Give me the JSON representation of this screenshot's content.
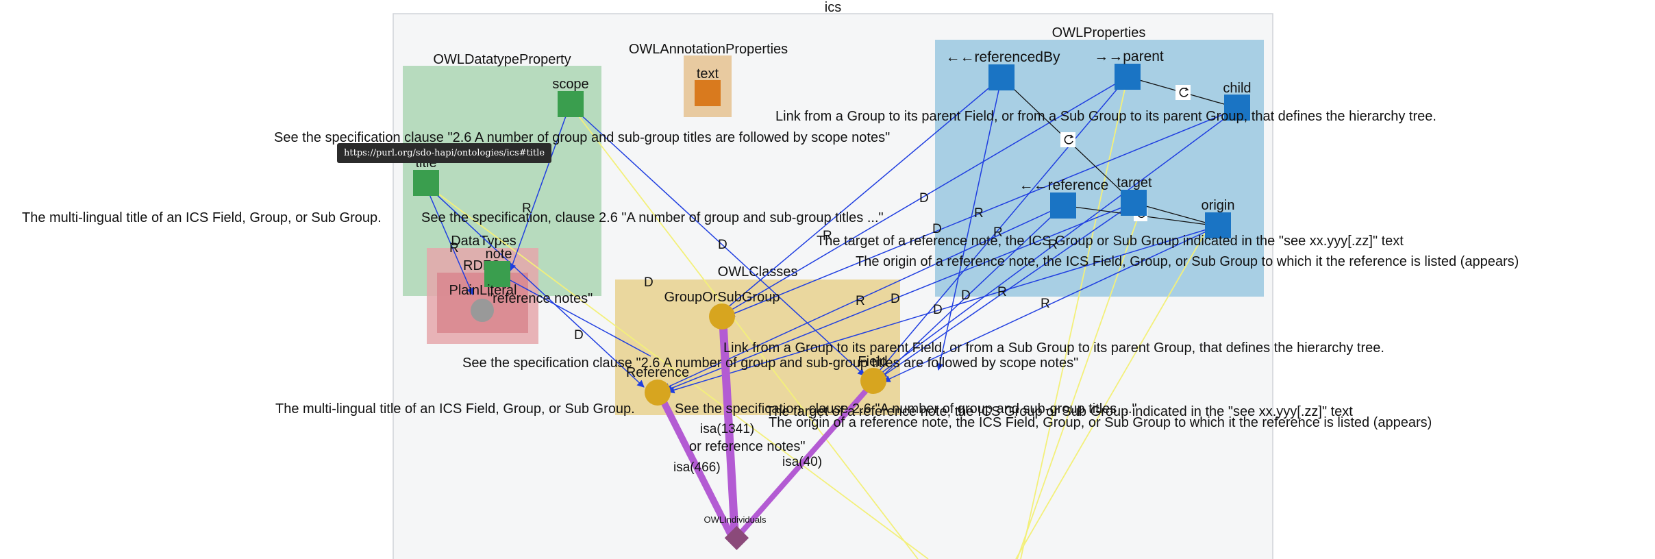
{
  "graph_title": "ics",
  "colors": {
    "frame_bg": "#f5f6f7",
    "frame_border": "#d0d4d8",
    "datatype_property": "#b7dbbe",
    "annotation_properties": "#e8caa0",
    "object_properties": "#a8cfe4",
    "owl_classes": "#ead79e",
    "datatypes_outer": "#e5a7ac",
    "datatypes_inner": "#d98890",
    "domain_range_edge": "#1f3ee0",
    "isa_edge": "#b35bd3",
    "annotation_edge": "#f3f07a",
    "class_node": "#d7a51f",
    "property_node_object": "#1a74c4",
    "property_node_datatype": "#3a9e4e",
    "property_node_annotation": "#d97a1e",
    "individual_node": "#8b4a7a",
    "literal_node": "#999999"
  },
  "groups": {
    "datatype_property": "OWLDatatypeProperty",
    "annotation_properties": "OWLAnnotationProperties",
    "object_properties": "OWLProperties",
    "classes": "OWLClasses",
    "datatypes": "DataTypes",
    "datatypes_inner": "RDFS"
  },
  "nodes": {
    "scope": "scope",
    "title": "title",
    "note": "note",
    "text": "text",
    "plain_literal": "PlainLiteral",
    "referenced_by": "←←referencedBy",
    "parent": "→→parent",
    "child": "child",
    "reference": "←←reference",
    "target": "target",
    "origin": "origin",
    "group_or_subgroup": "GroupOrSubGroup",
    "reference_class": "Reference",
    "field": "Field",
    "individuals": "OWLIndividuals"
  },
  "edge_labels": {
    "domain": "D",
    "range": "R",
    "isa_1341": "isa(1341)",
    "isa_466": "isa(466)",
    "isa_40": "isa(40)"
  },
  "annotations": {
    "scope_comment": "See the specification clause \"2.6 A number of group and sub-group titles are followed by scope notes\"",
    "title_comment": "The multi-lingual title of an ICS Field, Group, or Sub Group.",
    "note_comment": "See the specification, clause 2.6 \"A number of group and sub-group titles ...\"",
    "reference_notes": "\"reference notes\"",
    "parent_comment": "Link from a Group to its parent Field, or from a Sub Group to its parent Group, that defines the hierarchy tree.",
    "target_comment": "The target of a reference note, the ICS Group or Sub Group indicated in the \"see xx.yyy[.zz]\" text",
    "origin_comment": "The origin of a reference note, the ICS Field, Group, or Sub Group to which it the reference is listed (appears)",
    "lower_parent_comment": "Link from a Group to its parent Field, or from a Sub Group to its parent Group, that defines the hierarchy tree.",
    "lower_scope_comment": "See the specification clause \"2.6 A number of group and sub-group titles are followed by scope notes\"",
    "lower_title_comment": "The multi-lingual title of an ICS Field, Group, or Sub Group.",
    "lower_note_comment": "See the specification, clause 2.6 \"A number of group and sub-group titles ...\"",
    "lower_target_comment": "The target of a reference note, the ICS Group or Sub Group indicated in the \"see xx.yyy[.zz]\" text",
    "lower_origin_comment": "The origin of a reference note, the ICS Field, Group, or Sub Group to which it the reference is listed (appears)",
    "lower_reference_notes": "or reference notes\""
  },
  "tooltip": "https://purl.org/sdo-hapi/ontologies/ics#title",
  "icons": {
    "self_loop": "self-loop-icon"
  }
}
